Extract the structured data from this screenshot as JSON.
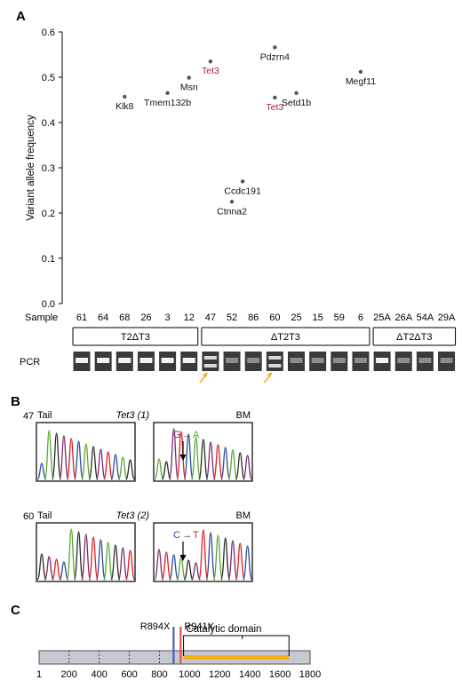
{
  "panels": {
    "a": "A",
    "b": "B",
    "c": "C"
  },
  "colors": {
    "red_label": "#a3224a",
    "arrow": "#f0b21e",
    "point": "#555555",
    "trace_blue": "#2b4c9b",
    "trace_green": "#5aa832",
    "trace_purple": "#7b2a6e",
    "trace_red": "#e02020",
    "domain_bar": "#f2b21b",
    "protein_fill": "#c8c8d2"
  },
  "chart_data": [
    {
      "type": "scatter",
      "ylabel": "Variant allele frequency",
      "ylim": [
        0,
        0.6
      ],
      "yticks": [
        "0.0",
        "0.1",
        "0.2",
        "0.3",
        "0.4",
        "0.5",
        "0.6"
      ],
      "x_row_label": "Sample",
      "categories": [
        "61",
        "64",
        "68",
        "26",
        "3",
        "12",
        "47",
        "52",
        "86",
        "60",
        "25",
        "15",
        "59",
        "6",
        "25A",
        "26A",
        "54A",
        "29A"
      ],
      "points": [
        {
          "sample": "68",
          "offset": 0,
          "y": 0.457,
          "label": "Klk8",
          "highlight": false,
          "label_pos": "below"
        },
        {
          "sample": "3",
          "offset": 0,
          "y": 0.465,
          "label": "Tmem132b",
          "highlight": false,
          "label_pos": "below"
        },
        {
          "sample": "12",
          "offset": 0,
          "y": 0.499,
          "label": "Msn",
          "highlight": false,
          "label_pos": "below"
        },
        {
          "sample": "47",
          "offset": 0,
          "y": 0.535,
          "label": "Tet3",
          "highlight": true,
          "label_pos": "below"
        },
        {
          "sample": "52",
          "offset": 0,
          "y": 0.225,
          "label": "Ctnna2",
          "highlight": false,
          "label_pos": "below"
        },
        {
          "sample": "86",
          "offset": -0.5,
          "y": 0.27,
          "label": "Ccdc191",
          "highlight": false,
          "label_pos": "below"
        },
        {
          "sample": "60",
          "offset": 0,
          "y": 0.566,
          "label": "Pdzrn4",
          "highlight": false,
          "label_pos": "below"
        },
        {
          "sample": "60",
          "offset": 0,
          "y": 0.455,
          "label": "Tet3",
          "highlight": true,
          "label_pos": "below"
        },
        {
          "sample": "25",
          "offset": 0,
          "y": 0.465,
          "label": "Setd1b",
          "highlight": false,
          "label_pos": "below"
        },
        {
          "sample": "6",
          "offset": 0,
          "y": 0.512,
          "label": "Megf11",
          "highlight": false,
          "label_pos": "below"
        }
      ],
      "groups": [
        {
          "label": "T2ΔT3",
          "from": "61",
          "to": "12"
        },
        {
          "label": "ΔT2T3",
          "from": "47",
          "to": "6"
        },
        {
          "label": "ΔT2ΔT3",
          "from": "25A",
          "to": "29A"
        }
      ],
      "pcr_label": "PCR",
      "pcr_lanes": [
        {
          "sample": "61",
          "band": "strong"
        },
        {
          "sample": "64",
          "band": "strong"
        },
        {
          "sample": "68",
          "band": "strong"
        },
        {
          "sample": "26",
          "band": "strong"
        },
        {
          "sample": "3",
          "band": "strong"
        },
        {
          "sample": "12",
          "band": "strong"
        },
        {
          "sample": "47",
          "band": "double",
          "arrow": true
        },
        {
          "sample": "52",
          "band": "faint"
        },
        {
          "sample": "86",
          "band": "faint"
        },
        {
          "sample": "60",
          "band": "double",
          "arrow": true
        },
        {
          "sample": "25",
          "band": "faint"
        },
        {
          "sample": "15",
          "band": "faint"
        },
        {
          "sample": "59",
          "band": "faint"
        },
        {
          "sample": "6",
          "band": "faint"
        },
        {
          "sample": "25A",
          "band": "strong"
        },
        {
          "sample": "26A",
          "band": "faint"
        },
        {
          "sample": "54A",
          "band": "faint"
        },
        {
          "sample": "29A",
          "band": "faint"
        }
      ]
    },
    {
      "type": "chromatogram",
      "rows": [
        {
          "sample": "47",
          "left_label": "Tail",
          "gene": "Tet3 (1)",
          "right_label": "BM",
          "mutation": {
            "from": "G",
            "arrow": "→",
            "to": "A",
            "from_color": "#7b2a6e",
            "to_color": "#5aa832"
          }
        },
        {
          "sample": "60",
          "left_label": "Tail",
          "gene": "Tet3 (2)",
          "right_label": "BM",
          "mutation": {
            "from": "C",
            "arrow": "→",
            "to": "T",
            "from_color": "#2b4c9b",
            "to_color": "#e02020"
          }
        }
      ]
    },
    {
      "type": "protein_map",
      "xlim": [
        1,
        1800
      ],
      "ticks": [
        1,
        200,
        400,
        600,
        800,
        1000,
        1200,
        1400,
        1600,
        1800
      ],
      "dashed_ticks": [
        200,
        400,
        600,
        800
      ],
      "mutations": [
        {
          "label": "R894X",
          "position": 894,
          "color": "#4a5fb0"
        },
        {
          "label": "R941X",
          "position": 941,
          "color": "#e0504a"
        }
      ],
      "domain": {
        "label": "Catalytic domain",
        "start": 960,
        "end": 1660
      }
    }
  ]
}
